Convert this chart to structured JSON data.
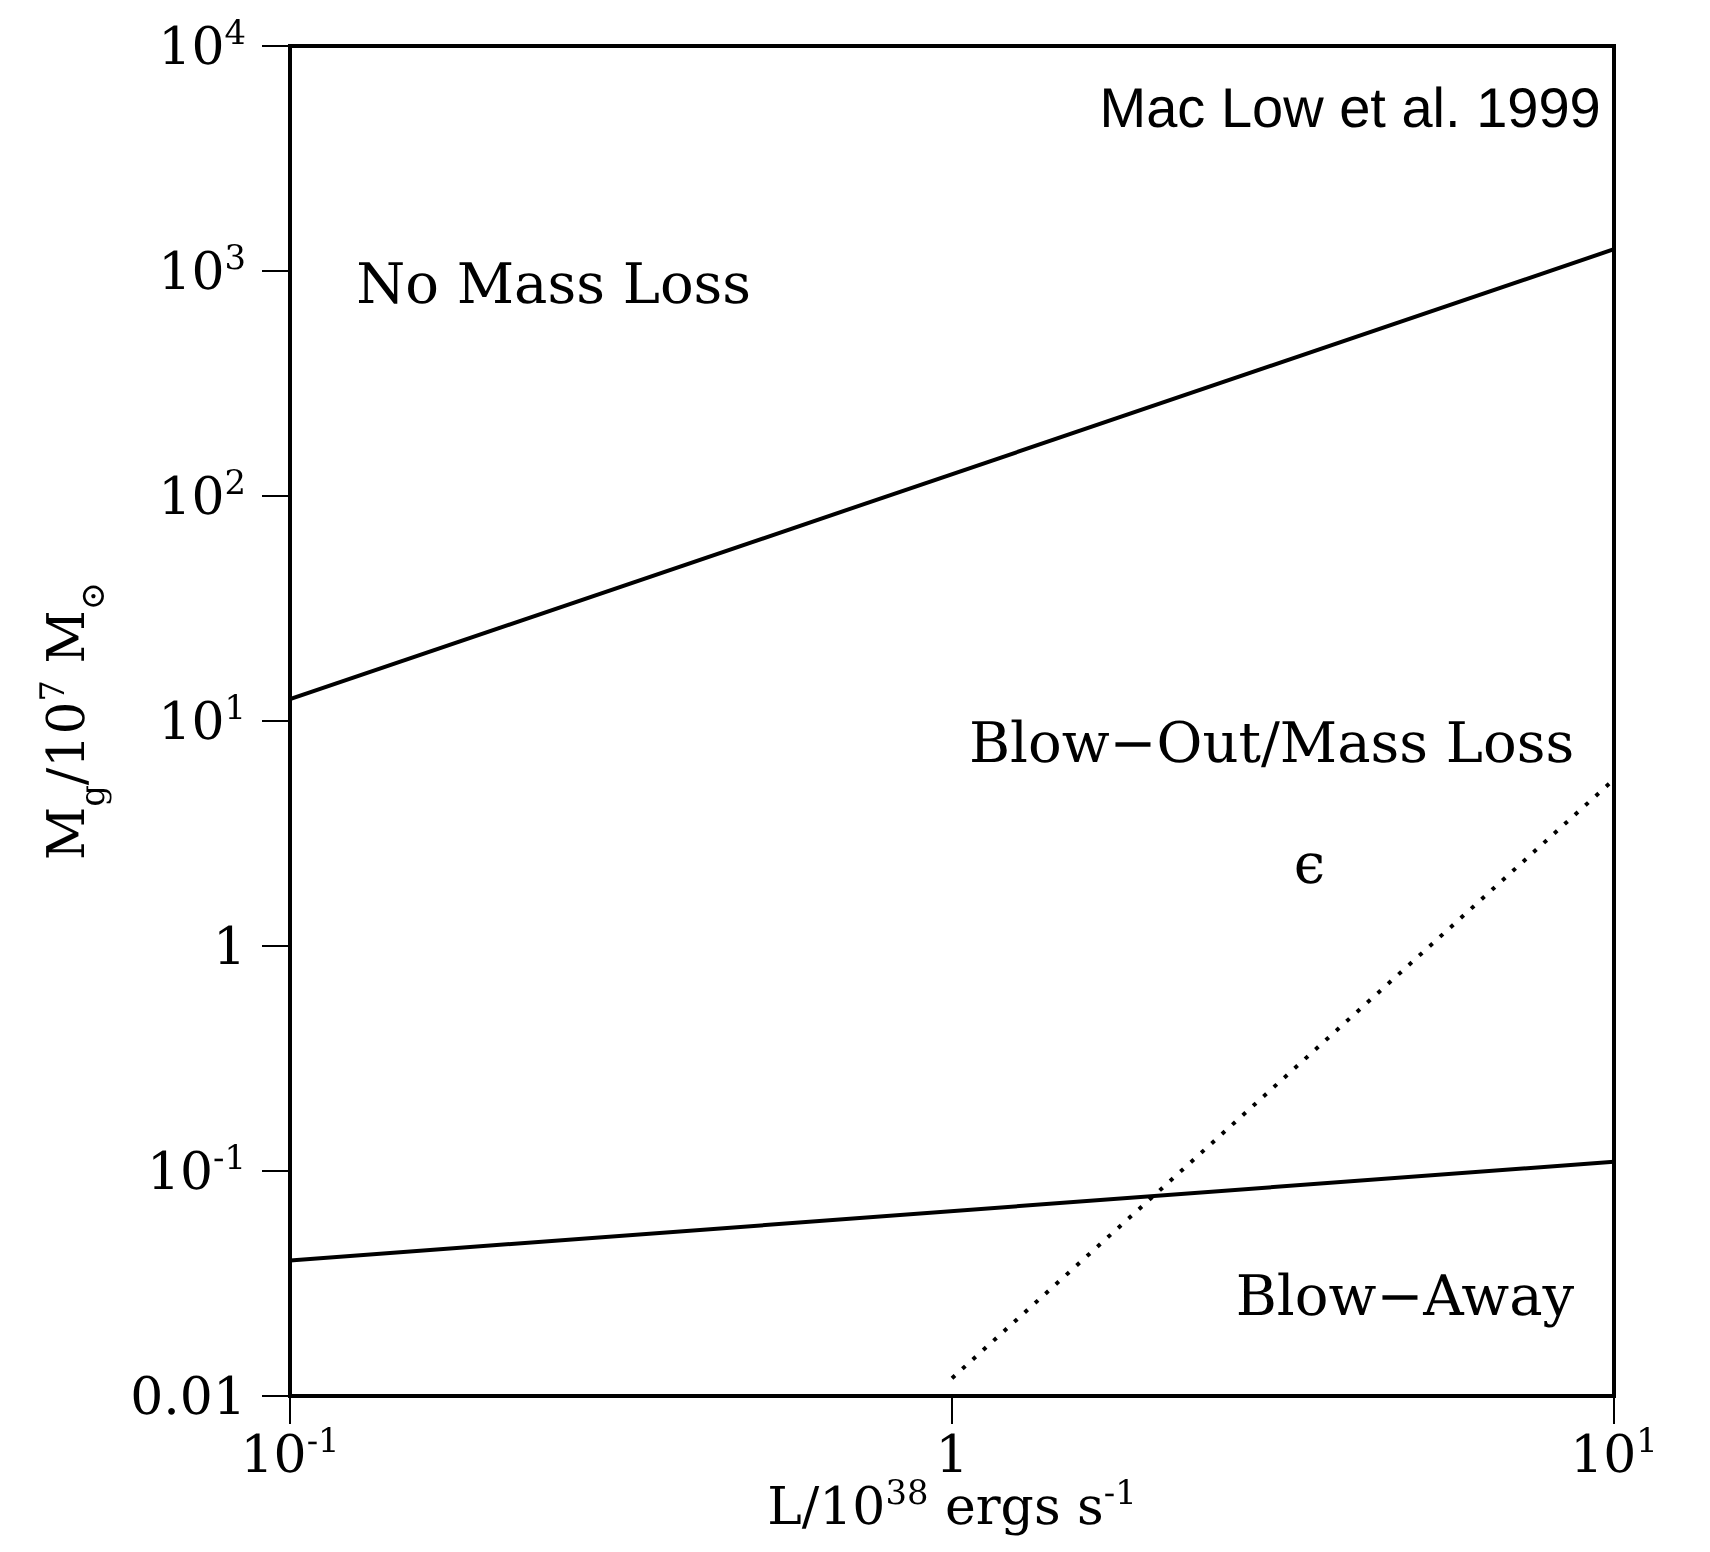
{
  "chart_data": {
    "type": "line",
    "xlabel": "L/10$^{38}$ ergs s$^{-1}$",
    "ylabel": "M$_{g}$/10$^{7}$ M$_{⊙}$",
    "log": "xy",
    "grid": false,
    "marker": "none",
    "xlim": [
      0.1,
      10
    ],
    "xticks": [
      {
        "value": 0.1,
        "label": "10$^{-1}$"
      },
      1,
      {
        "value": 10,
        "label": "10$^{1}$"
      }
    ],
    "ylim": [
      0.01,
      10000
    ],
    "yticks": [
      0.01,
      {
        "value": 0.1,
        "label": "10$^{-1}$"
      },
      1,
      {
        "value": 10,
        "label": "10$^{1}$"
      },
      {
        "value": 100,
        "label": "10$^{2}$"
      },
      {
        "value": 1000,
        "label": "10$^{3}$"
      },
      {
        "value": 10000,
        "label": "10$^{4}$"
      }
    ],
    "series": [
      {
        "color": "#000000",
        "x": [
          0.1,
          10
        ],
        "values": [
          12.5,
          1250
        ],
        "line_style": "solid"
      },
      {
        "color": "#000000",
        "x": [
          0.1,
          10
        ],
        "values": [
          0.04,
          0.11
        ],
        "line_style": "solid"
      },
      {
        "color": "#000000",
        "x": [
          1,
          10
        ],
        "values": [
          0.012,
          5.5
        ],
        "line_style": "dotted"
      }
    ],
    "annotations": [
      "Mac Low et al. 1999",
      "No Mass Loss",
      "Blow−Out/Mass Loss",
      "Blow−Away",
      "ϵ"
    ]
  }
}
